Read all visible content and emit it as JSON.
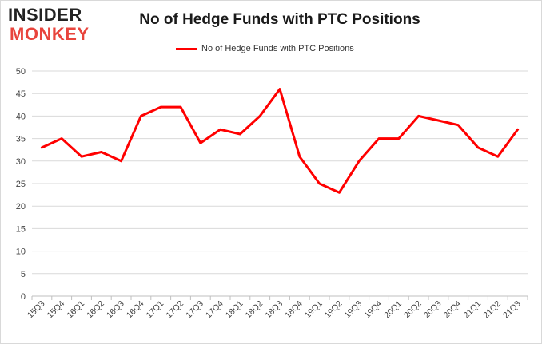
{
  "logo": {
    "line1": "INSIDER",
    "line2": "MONKEY"
  },
  "chart_data": {
    "type": "line",
    "title": "No of Hedge Funds with PTC Positions",
    "xlabel": "",
    "ylabel": "",
    "ylim": [
      0,
      50
    ],
    "yticks": [
      0,
      5,
      10,
      15,
      20,
      25,
      30,
      35,
      40,
      45,
      50
    ],
    "grid": true,
    "legend_position": "top-center",
    "categories": [
      "15Q3",
      "15Q4",
      "16Q1",
      "16Q2",
      "16Q3",
      "16Q4",
      "17Q1",
      "17Q2",
      "17Q3",
      "17Q4",
      "18Q1",
      "18Q2",
      "18Q3",
      "18Q4",
      "19Q1",
      "19Q2",
      "19Q3",
      "19Q4",
      "20Q1",
      "20Q2",
      "20Q3",
      "20Q4",
      "21Q1",
      "21Q2",
      "21Q3"
    ],
    "series": [
      {
        "name": "No of Hedge Funds with PTC Positions",
        "color": "#ff0000",
        "values": [
          33,
          35,
          31,
          32,
          30,
          40,
          42,
          42,
          34,
          37,
          36,
          40,
          46,
          31,
          25,
          23,
          30,
          35,
          35,
          40,
          39,
          38,
          33,
          31,
          37
        ]
      }
    ]
  }
}
